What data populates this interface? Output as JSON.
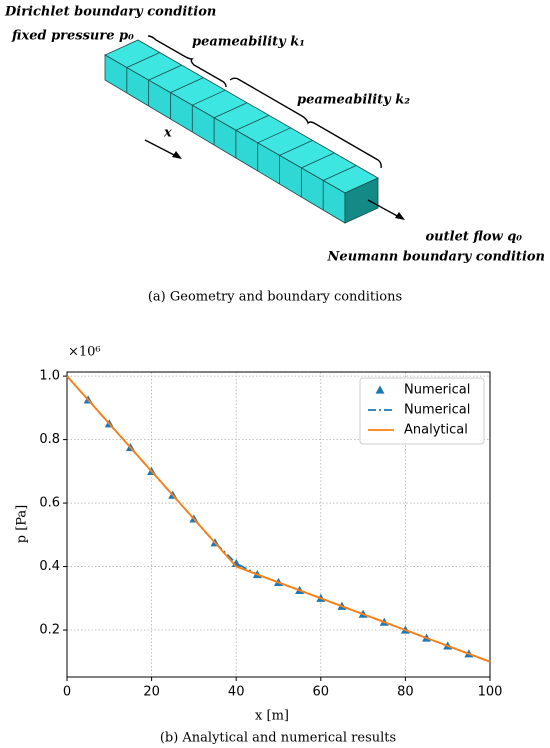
{
  "diagram": {
    "left_label": "Dirichlet boundary condition",
    "left_sublabel": "fixed pressure p₀",
    "segment_1_label": "peameability k₁",
    "segment_2_label": "peameability k₂",
    "direction_label": "x",
    "outlet_label": "outlet flow q₀",
    "outlet_sublabel": "Neumann boundary condition",
    "caption": "(a) Geometry and boundary conditions"
  },
  "chart_data": {
    "type": "line",
    "caption": "(b) Analytical and numerical results",
    "xlabel": "x [m]",
    "ylabel": "p [Pa]",
    "y_offset_label": "×10⁶",
    "xlim": [
      0,
      100
    ],
    "xticks": [
      0,
      20,
      40,
      60,
      80,
      100
    ],
    "ylim": [
      0.052,
      1.013
    ],
    "yticks": [
      0.2,
      0.4,
      0.6,
      0.8,
      {
        "value": 1,
        "label": "1.0"
      }
    ],
    "grid": true,
    "legend": "upper right",
    "series": [
      {
        "name": "Numerical",
        "color": "#1f77b4",
        "marker": "triangle",
        "x": [
          5,
          10,
          15,
          20,
          25,
          30,
          35,
          40,
          45,
          50,
          55,
          60,
          65,
          70,
          75,
          80,
          85,
          90,
          95
        ],
        "values": [
          0.925,
          0.85,
          0.775,
          0.7,
          0.625,
          0.55,
          0.475,
          0.41,
          0.375,
          0.35,
          0.325,
          0.3,
          0.275,
          0.25,
          0.225,
          0.2,
          0.175,
          0.15,
          0.125
        ]
      },
      {
        "name": "Numerical",
        "color": "#1f77b4",
        "line_style": "dashdot",
        "x": [
          0,
          5,
          10,
          15,
          20,
          25,
          30,
          35,
          40,
          45,
          50,
          55,
          60,
          65,
          70,
          75,
          80,
          85,
          90,
          95,
          100
        ],
        "values": [
          1,
          0.925,
          0.85,
          0.775,
          0.7,
          0.625,
          0.55,
          0.475,
          0.41,
          0.375,
          0.35,
          0.325,
          0.3,
          0.275,
          0.25,
          0.225,
          0.2,
          0.175,
          0.15,
          0.125,
          0.1
        ]
      },
      {
        "name": "Analytical",
        "color": "#ff7f0e",
        "line_style": "solid",
        "x": [
          0,
          40,
          100
        ],
        "values": [
          1,
          0.4,
          0.1
        ]
      }
    ]
  }
}
